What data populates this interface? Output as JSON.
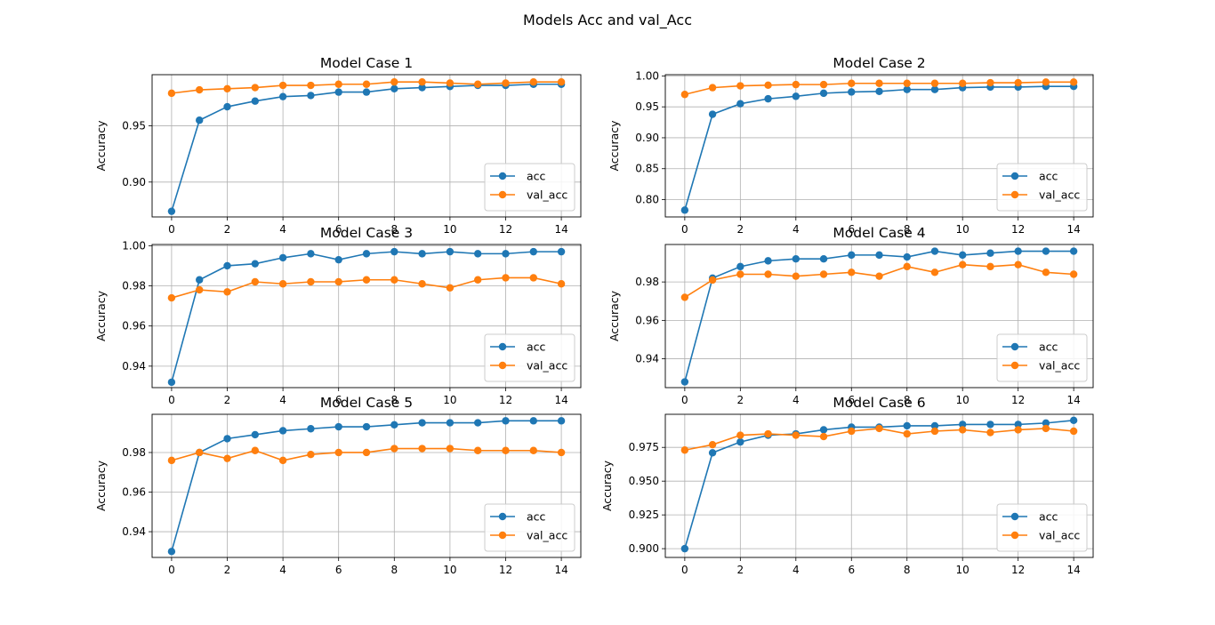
{
  "figure": {
    "title": "Models Acc and val_Acc"
  },
  "colors": {
    "acc": "#1f77b4",
    "val_acc": "#ff7f0e",
    "grid": "#b0b0b0"
  },
  "chart_data": [
    {
      "type": "line",
      "title": "Model Case 1",
      "xlabel": "",
      "ylabel": "Accuracy",
      "x": [
        0,
        1,
        2,
        3,
        4,
        5,
        6,
        7,
        8,
        9,
        10,
        11,
        12,
        13,
        14
      ],
      "xlim": [
        -0.7,
        14.7
      ],
      "ylim": [
        0.869,
        0.9955
      ],
      "xticks": [
        0,
        2,
        4,
        6,
        8,
        10,
        12,
        14
      ],
      "xticklabels": [
        "0",
        "2",
        "4",
        "6",
        "8",
        "10",
        "12",
        "14"
      ],
      "yticks": [
        0.9,
        0.95
      ],
      "yticklabels": [
        "0.90",
        "0.95"
      ],
      "grid": true,
      "legend_position": "lower right",
      "series": [
        {
          "name": "acc",
          "values": [
            0.874,
            0.955,
            0.967,
            0.972,
            0.976,
            0.977,
            0.98,
            0.98,
            0.983,
            0.984,
            0.985,
            0.986,
            0.986,
            0.987,
            0.987
          ]
        },
        {
          "name": "val_acc",
          "values": [
            0.979,
            0.982,
            0.983,
            0.984,
            0.986,
            0.986,
            0.987,
            0.987,
            0.989,
            0.989,
            0.988,
            0.987,
            0.988,
            0.989,
            0.989
          ]
        }
      ]
    },
    {
      "type": "line",
      "title": "Model Case 2",
      "xlabel": "",
      "ylabel": "Accuracy",
      "x": [
        0,
        1,
        2,
        3,
        4,
        5,
        6,
        7,
        8,
        9,
        10,
        11,
        12,
        13,
        14
      ],
      "xlim": [
        -0.7,
        14.7
      ],
      "ylim": [
        0.772,
        1.002
      ],
      "xticks": [
        0,
        2,
        4,
        6,
        8,
        10,
        12,
        14
      ],
      "xticklabels": [
        "0",
        "2",
        "4",
        "6",
        "8",
        "10",
        "12",
        "14"
      ],
      "yticks": [
        0.8,
        0.85,
        0.9,
        0.95,
        1.0
      ],
      "yticklabels": [
        "0.80",
        "0.85",
        "0.90",
        "0.95",
        "1.00"
      ],
      "grid": true,
      "legend_position": "lower right",
      "series": [
        {
          "name": "acc",
          "values": [
            0.783,
            0.938,
            0.955,
            0.963,
            0.967,
            0.972,
            0.974,
            0.975,
            0.978,
            0.978,
            0.981,
            0.982,
            0.982,
            0.983,
            0.983
          ]
        },
        {
          "name": "val_acc",
          "values": [
            0.97,
            0.981,
            0.984,
            0.985,
            0.986,
            0.986,
            0.988,
            0.988,
            0.988,
            0.988,
            0.988,
            0.989,
            0.989,
            0.99,
            0.99
          ]
        }
      ]
    },
    {
      "type": "line",
      "title": "Model Case 3",
      "xlabel": "",
      "ylabel": "Accuracy",
      "x": [
        0,
        1,
        2,
        3,
        4,
        5,
        6,
        7,
        8,
        9,
        10,
        11,
        12,
        13,
        14
      ],
      "xlim": [
        -0.7,
        14.7
      ],
      "ylim": [
        0.9293,
        1.0006
      ],
      "xticks": [
        0,
        2,
        4,
        6,
        8,
        10,
        12,
        14
      ],
      "xticklabels": [
        "0",
        "2",
        "4",
        "6",
        "8",
        "10",
        "12",
        "14"
      ],
      "yticks": [
        0.94,
        0.96,
        0.98,
        1.0
      ],
      "yticklabels": [
        "0.94",
        "0.96",
        "0.98",
        "1.00"
      ],
      "grid": true,
      "legend_position": "lower right",
      "series": [
        {
          "name": "acc",
          "values": [
            0.932,
            0.983,
            0.99,
            0.991,
            0.994,
            0.996,
            0.993,
            0.996,
            0.997,
            0.996,
            0.997,
            0.996,
            0.996,
            0.997,
            0.997
          ]
        },
        {
          "name": "val_acc",
          "values": [
            0.974,
            0.978,
            0.977,
            0.982,
            0.981,
            0.982,
            0.982,
            0.983,
            0.983,
            0.981,
            0.979,
            0.983,
            0.984,
            0.984,
            0.981
          ]
        }
      ]
    },
    {
      "type": "line",
      "title": "Model Case 4",
      "xlabel": "",
      "ylabel": "Accuracy",
      "x": [
        0,
        1,
        2,
        3,
        4,
        5,
        6,
        7,
        8,
        9,
        10,
        11,
        12,
        13,
        14
      ],
      "xlim": [
        -0.7,
        14.7
      ],
      "ylim": [
        0.925,
        0.9995
      ],
      "xticks": [
        0,
        2,
        4,
        6,
        8,
        10,
        12,
        14
      ],
      "xticklabels": [
        "0",
        "2",
        "4",
        "6",
        "8",
        "10",
        "12",
        "14"
      ],
      "yticks": [
        0.94,
        0.96,
        0.98
      ],
      "yticklabels": [
        "0.94",
        "0.96",
        "0.98"
      ],
      "grid": true,
      "legend_position": "lower right",
      "series": [
        {
          "name": "acc",
          "values": [
            0.928,
            0.982,
            0.988,
            0.991,
            0.992,
            0.992,
            0.994,
            0.994,
            0.993,
            0.996,
            0.994,
            0.995,
            0.996,
            0.996,
            0.996
          ]
        },
        {
          "name": "val_acc",
          "values": [
            0.972,
            0.981,
            0.984,
            0.984,
            0.983,
            0.984,
            0.985,
            0.983,
            0.988,
            0.985,
            0.989,
            0.988,
            0.989,
            0.985,
            0.984
          ]
        }
      ]
    },
    {
      "type": "line",
      "title": "Model Case 5",
      "xlabel": "",
      "ylabel": "Accuracy",
      "x": [
        0,
        1,
        2,
        3,
        4,
        5,
        6,
        7,
        8,
        9,
        10,
        11,
        12,
        13,
        14
      ],
      "xlim": [
        -0.7,
        14.7
      ],
      "ylim": [
        0.927,
        0.9993
      ],
      "xticks": [
        0,
        2,
        4,
        6,
        8,
        10,
        12,
        14
      ],
      "xticklabels": [
        "0",
        "2",
        "4",
        "6",
        "8",
        "10",
        "12",
        "14"
      ],
      "yticks": [
        0.94,
        0.96,
        0.98
      ],
      "yticklabels": [
        "0.94",
        "0.96",
        "0.98"
      ],
      "grid": true,
      "legend_position": "lower right",
      "series": [
        {
          "name": "acc",
          "values": [
            0.93,
            0.98,
            0.987,
            0.989,
            0.991,
            0.992,
            0.993,
            0.993,
            0.994,
            0.995,
            0.995,
            0.995,
            0.996,
            0.996,
            0.996
          ]
        },
        {
          "name": "val_acc",
          "values": [
            0.976,
            0.98,
            0.977,
            0.981,
            0.976,
            0.979,
            0.98,
            0.98,
            0.982,
            0.982,
            0.982,
            0.981,
            0.981,
            0.981,
            0.98
          ]
        }
      ]
    },
    {
      "type": "line",
      "title": "Model Case 6",
      "xlabel": "",
      "ylabel": "Accuracy",
      "x": [
        0,
        1,
        2,
        3,
        4,
        5,
        6,
        7,
        8,
        9,
        10,
        11,
        12,
        13,
        14
      ],
      "xlim": [
        -0.7,
        14.7
      ],
      "ylim": [
        0.8935,
        0.9995
      ],
      "xticks": [
        0,
        2,
        4,
        6,
        8,
        10,
        12,
        14
      ],
      "xticklabels": [
        "0",
        "2",
        "4",
        "6",
        "8",
        "10",
        "12",
        "14"
      ],
      "yticks": [
        0.9,
        0.925,
        0.95,
        0.975
      ],
      "yticklabels": [
        "0.900",
        "0.925",
        "0.950",
        "0.975"
      ],
      "grid": true,
      "legend_position": "lower right",
      "series": [
        {
          "name": "acc",
          "values": [
            0.9,
            0.971,
            0.979,
            0.984,
            0.985,
            0.988,
            0.99,
            0.99,
            0.991,
            0.991,
            0.992,
            0.992,
            0.992,
            0.993,
            0.995
          ]
        },
        {
          "name": "val_acc",
          "values": [
            0.973,
            0.977,
            0.984,
            0.985,
            0.984,
            0.983,
            0.987,
            0.989,
            0.985,
            0.987,
            0.988,
            0.986,
            0.988,
            0.989,
            0.987
          ]
        }
      ]
    }
  ]
}
